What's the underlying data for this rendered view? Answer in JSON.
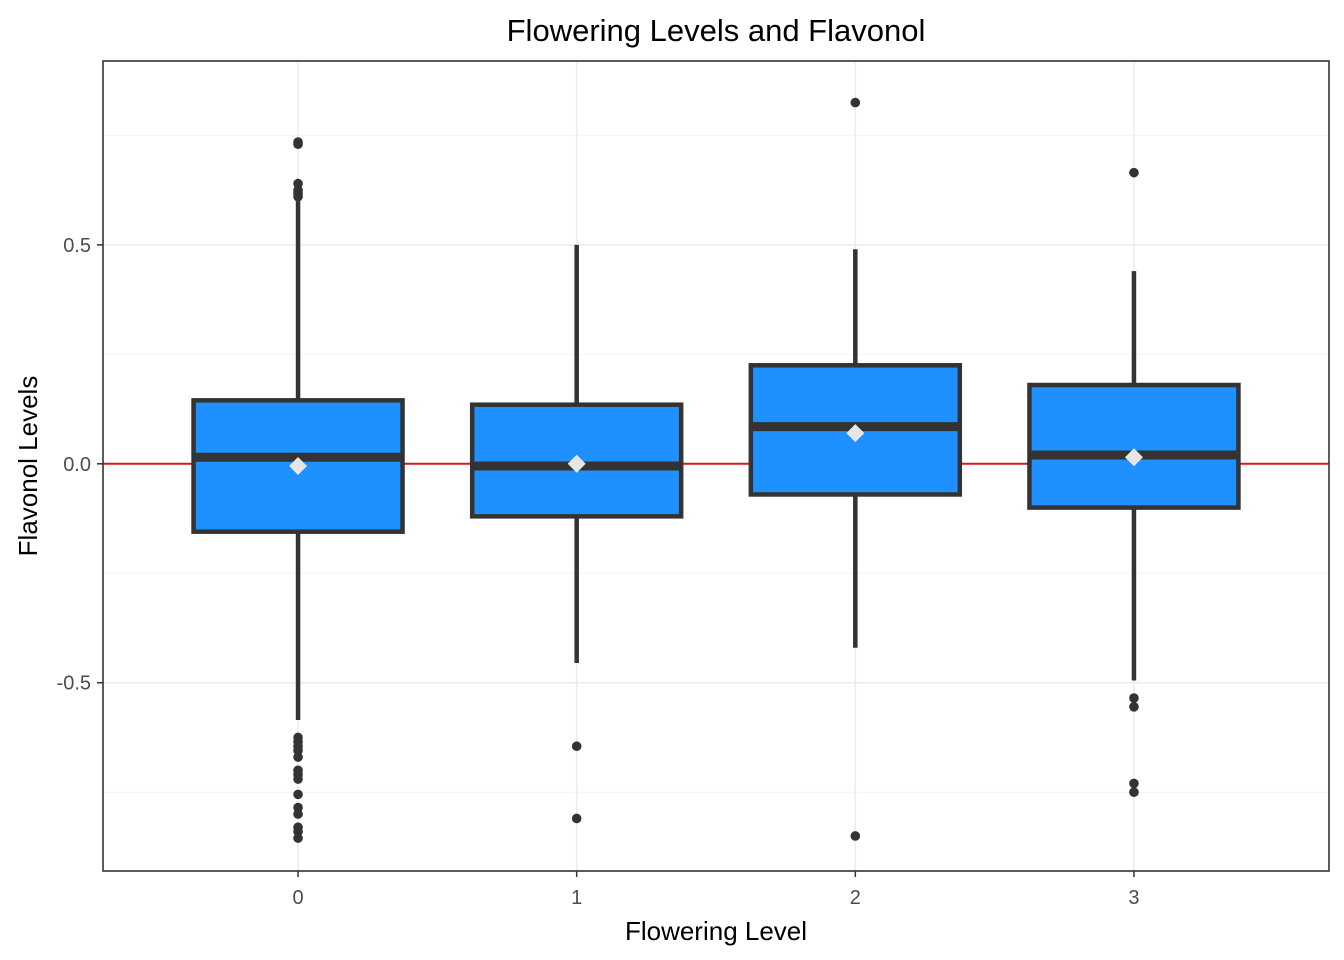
{
  "chart_data": {
    "type": "box",
    "title": "Flowering Levels and Flavonol",
    "xlabel": "Flowering Level",
    "ylabel": "Flavonol Levels",
    "categories": [
      "0",
      "1",
      "2",
      "3"
    ],
    "ylim": [
      -0.93,
      0.92
    ],
    "yticks": [
      -0.5,
      0.0,
      0.5
    ],
    "ytick_labels": [
      "-0.5",
      "0.0",
      "0.5"
    ],
    "grid": true,
    "reference_line": {
      "y": 0.0,
      "color": "#d7191c"
    },
    "box_fill": "#1e90ff",
    "box_stroke": "#333333",
    "mean_marker_color": "#e6e6e6",
    "boxes": [
      {
        "category": "0",
        "q1": -0.155,
        "median": 0.015,
        "q3": 0.145,
        "whisker_low": -0.585,
        "whisker_high": 0.6,
        "mean": -0.005,
        "outliers": [
          0.735,
          0.73,
          0.64,
          0.625,
          0.62,
          0.615,
          0.61,
          -0.625,
          -0.635,
          -0.645,
          -0.655,
          -0.67,
          -0.7,
          -0.71,
          -0.72,
          -0.755,
          -0.785,
          -0.8,
          -0.83,
          -0.84,
          -0.855
        ]
      },
      {
        "category": "1",
        "q1": -0.12,
        "median": -0.005,
        "q3": 0.135,
        "whisker_low": -0.455,
        "whisker_high": 0.5,
        "mean": 0.0,
        "outliers": [
          -0.645,
          -0.81
        ]
      },
      {
        "category": "2",
        "q1": -0.07,
        "median": 0.085,
        "q3": 0.225,
        "whisker_low": -0.42,
        "whisker_high": 0.49,
        "mean": 0.07,
        "outliers": [
          0.825,
          -0.85
        ]
      },
      {
        "category": "3",
        "q1": -0.1,
        "median": 0.02,
        "q3": 0.18,
        "whisker_low": -0.495,
        "whisker_high": 0.44,
        "mean": 0.015,
        "outliers": [
          0.665,
          -0.535,
          -0.555,
          -0.73,
          -0.75
        ]
      }
    ]
  }
}
